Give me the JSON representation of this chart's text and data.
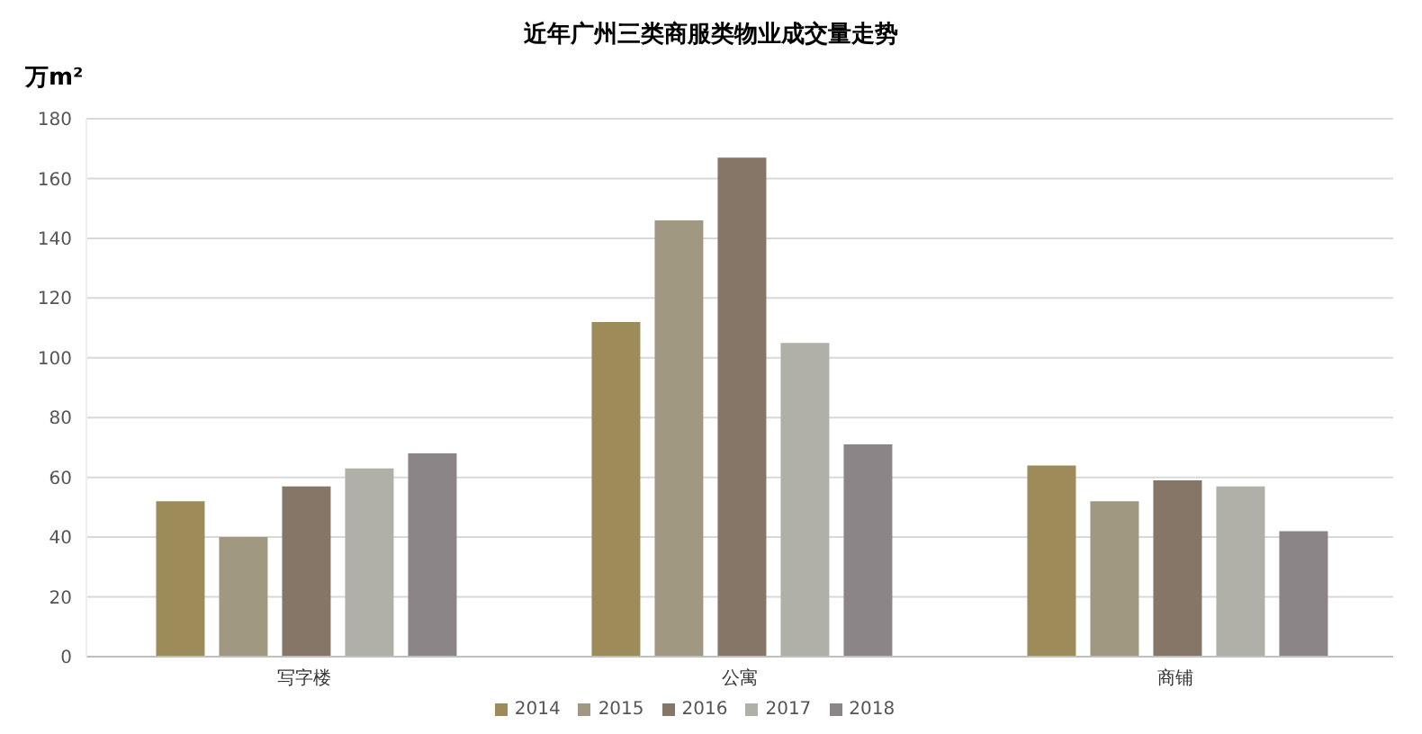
{
  "chart_data": {
    "type": "bar",
    "title": "近年广州三类商服类物业成交量走势",
    "ylabel": "万m²",
    "categories": [
      "写字楼",
      "公寓",
      "商铺"
    ],
    "series": [
      {
        "name": "2014",
        "color": "#9e8b5a",
        "values": [
          52,
          112,
          64
        ]
      },
      {
        "name": "2015",
        "color": "#a09880",
        "values": [
          40,
          146,
          52
        ]
      },
      {
        "name": "2016",
        "color": "#857668",
        "values": [
          57,
          167,
          59
        ]
      },
      {
        "name": "2017",
        "color": "#b0b0a8",
        "values": [
          63,
          105,
          57
        ]
      },
      {
        "name": "2018",
        "color": "#8c8588",
        "values": [
          68,
          71,
          42
        ]
      }
    ],
    "ylim": [
      0,
      180
    ],
    "yticks": [
      0,
      20,
      40,
      60,
      80,
      100,
      120,
      140,
      160,
      180
    ],
    "grid": "y",
    "legend": "bottom"
  }
}
